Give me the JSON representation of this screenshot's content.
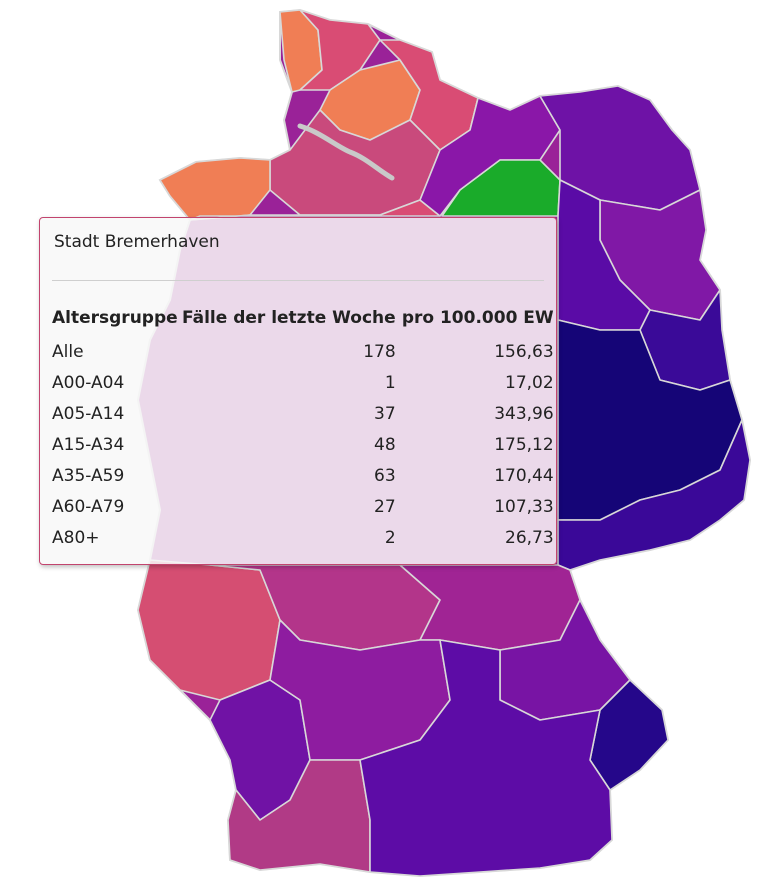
{
  "map": {
    "regions": [
      {
        "id": "nordfriesland",
        "color": "#f07e55"
      },
      {
        "id": "schleswig",
        "color": "#d94c74"
      },
      {
        "id": "kiel",
        "color": "#f07e55"
      },
      {
        "id": "holstein",
        "color": "#d94c74"
      },
      {
        "id": "hamburg",
        "color": "#c94a7c"
      },
      {
        "id": "ostfriesland",
        "color": "#f07e55"
      },
      {
        "id": "weser-ems",
        "color": "#d94c74"
      },
      {
        "id": "rostock",
        "color": "#8a17a8"
      },
      {
        "id": "vorpommern",
        "color": "#6e12a6"
      },
      {
        "id": "mueritz",
        "color": "#1aab2a"
      },
      {
        "id": "uckermark",
        "color": "#8018a6"
      },
      {
        "id": "brandenburg",
        "color": "#5a0ba6"
      },
      {
        "id": "lausitz",
        "color": "#3a0a98"
      },
      {
        "id": "sachsen",
        "color": "#150577"
      },
      {
        "id": "erzgebirge",
        "color": "#3a0898"
      },
      {
        "id": "hessen",
        "color": "#b3358a"
      },
      {
        "id": "nrw-west",
        "color": "#d54e72"
      },
      {
        "id": "franken",
        "color": "#a02494"
      },
      {
        "id": "oberpfalz",
        "color": "#7814a4"
      },
      {
        "id": "niederbayern",
        "color": "#25078a"
      },
      {
        "id": "wuerttemberg",
        "color": "#8e1ca0"
      },
      {
        "id": "baden",
        "color": "#7012a5"
      },
      {
        "id": "allgaeu",
        "color": "#b13a86"
      },
      {
        "id": "oberbayern",
        "color": "#5d0ca6"
      }
    ]
  },
  "tooltip": {
    "title": "Stadt Bremerhaven",
    "headers": [
      "Altersgruppe",
      "Fälle der letzte Woche",
      "pro 100.000 EW"
    ],
    "rows": [
      [
        "Alle",
        "178",
        "156,63"
      ],
      [
        "A00-A04",
        "1",
        "17,02"
      ],
      [
        "A05-A14",
        "37",
        "343,96"
      ],
      [
        "A15-A34",
        "48",
        "175,12"
      ],
      [
        "A35-A59",
        "63",
        "170,44"
      ],
      [
        "A60-A79",
        "27",
        "107,33"
      ],
      [
        "A80+",
        "2",
        "26,73"
      ]
    ]
  }
}
